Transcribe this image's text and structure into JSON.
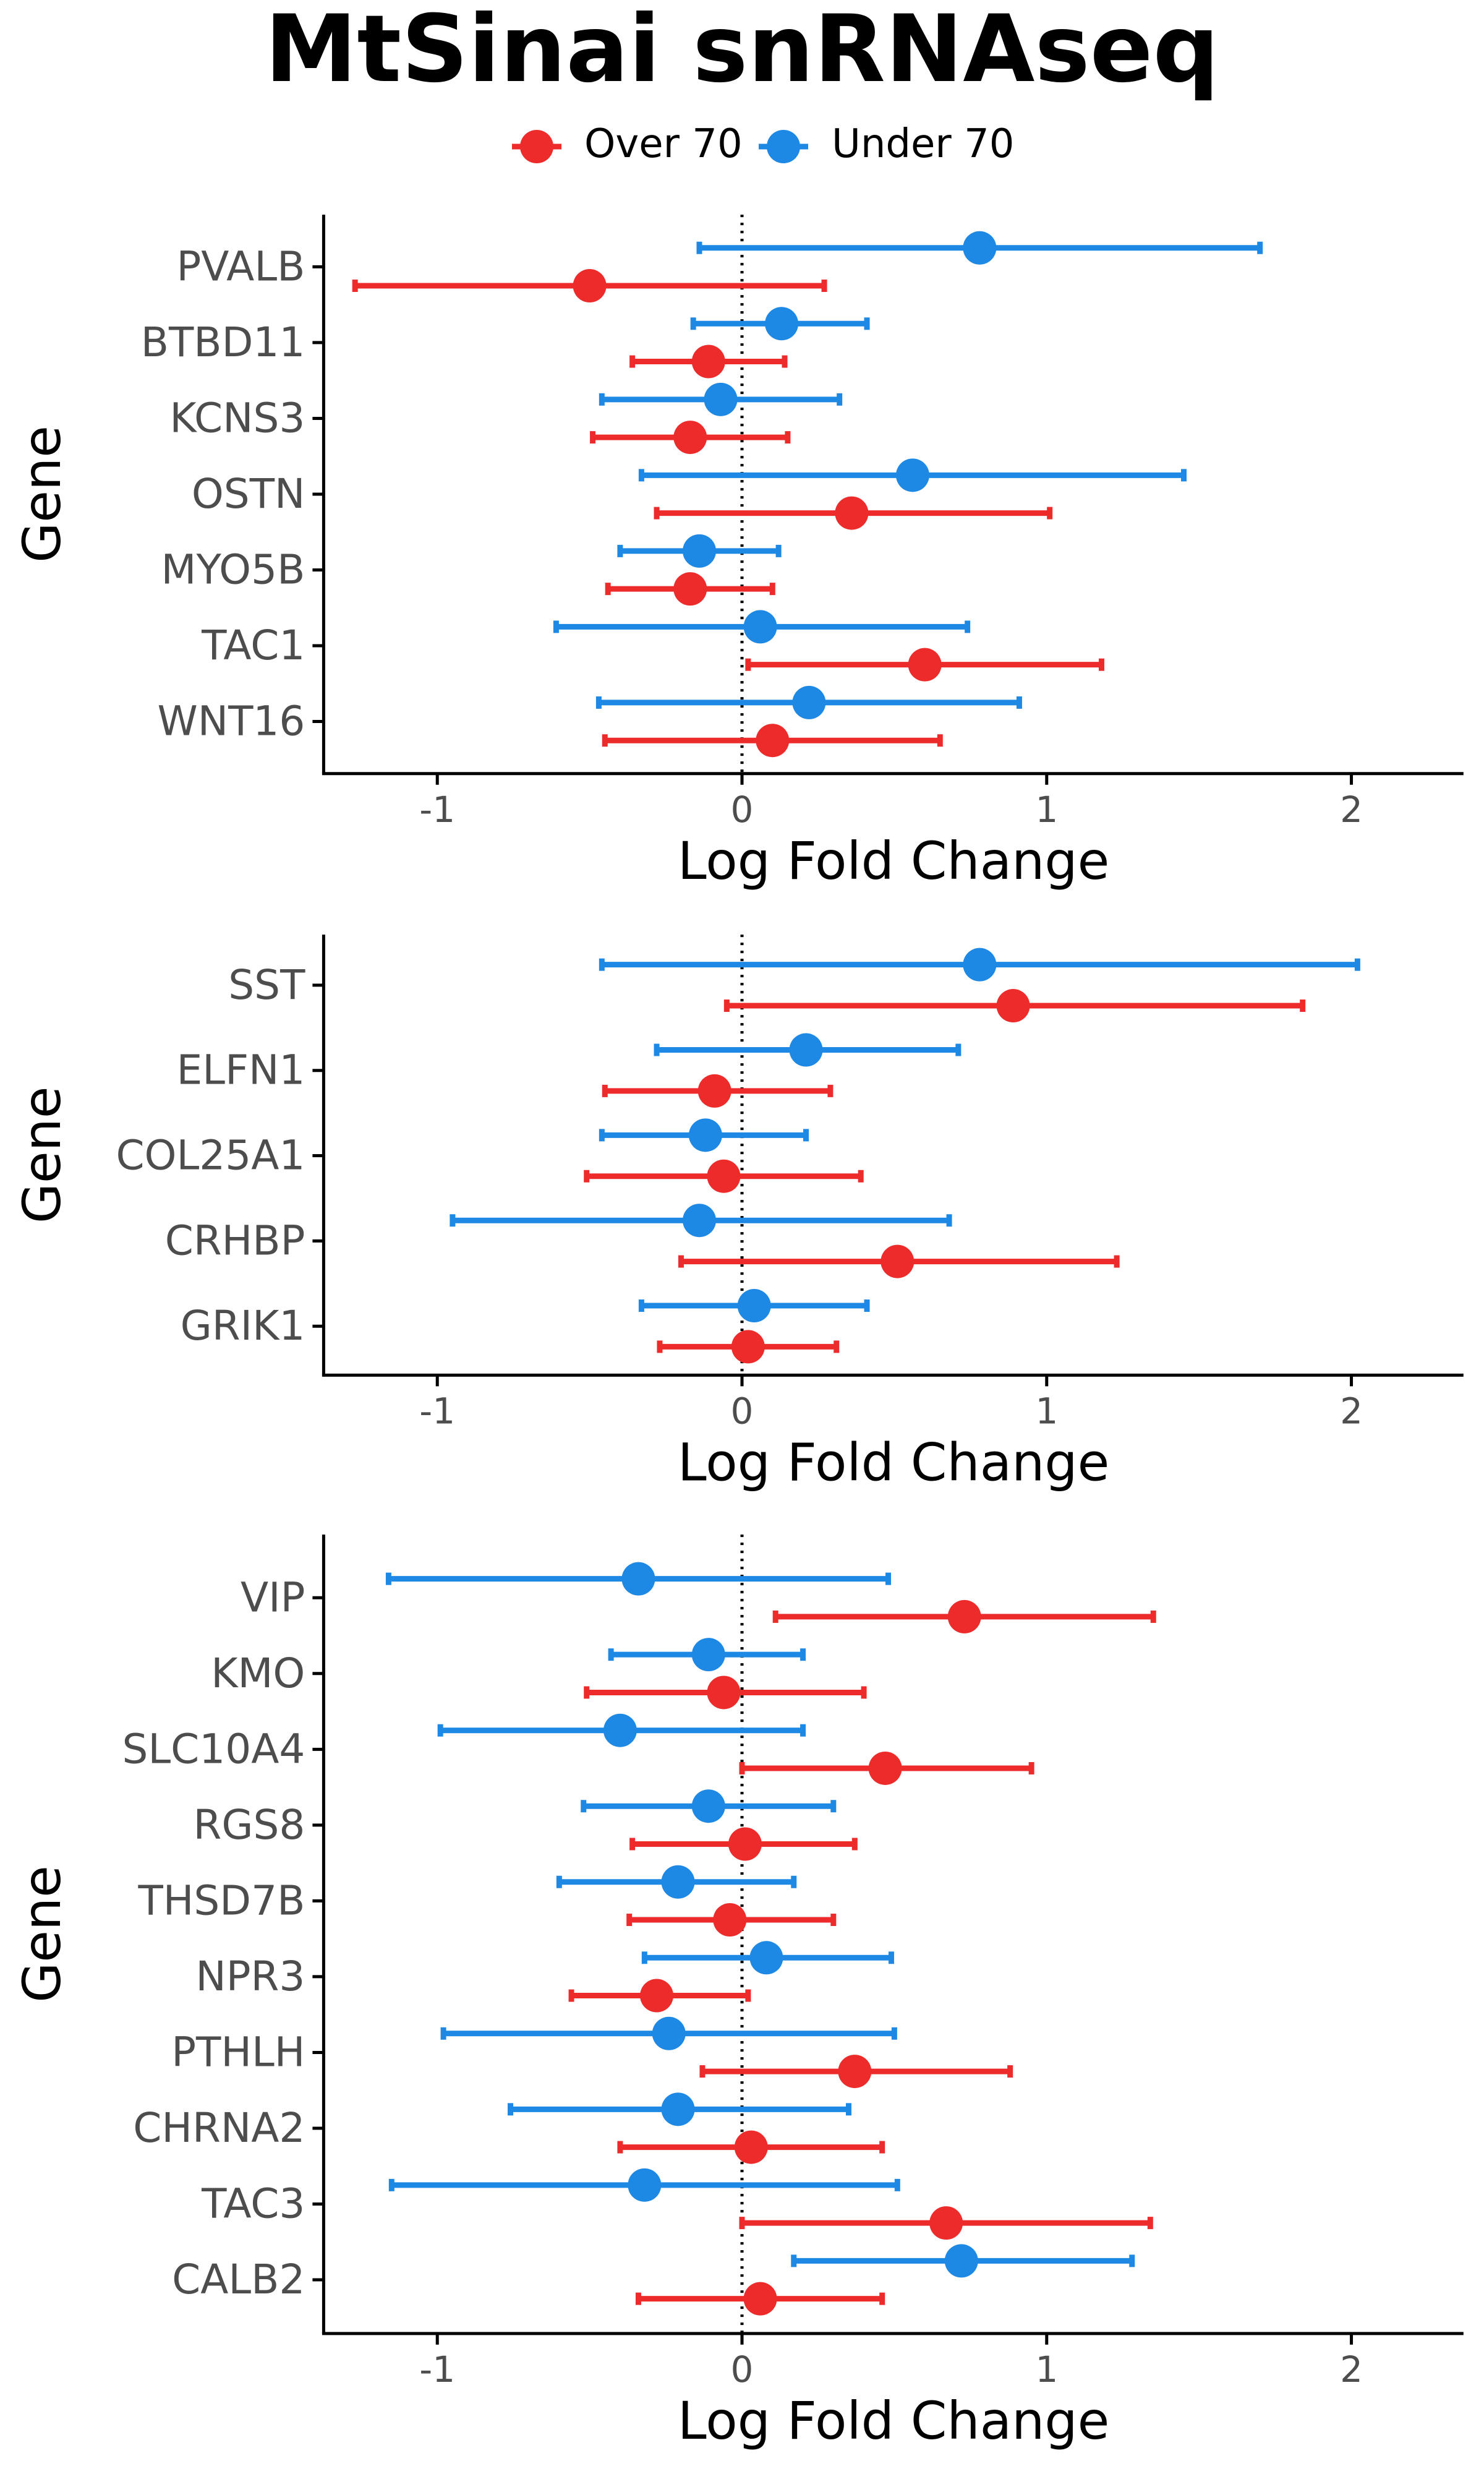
{
  "title": "MtSinai snRNAseq",
  "legend": [
    {
      "label": "Over 70",
      "color": "#EE2B2B"
    },
    {
      "label": "Under 70",
      "color": "#1E88E5"
    }
  ],
  "chart_data": [
    {
      "type": "scatter",
      "subtype": "dot-and-error-bar (forest plot)",
      "ylabel": "Gene",
      "xlabel": "Log Fold Change",
      "xlim": [
        -1.35,
        2.35
      ],
      "xticks": [
        -1,
        0,
        1,
        2
      ],
      "xtick_labels": [
        "-1",
        "0",
        "1",
        "2"
      ],
      "reference_line": {
        "x": 0,
        "style": "dotted"
      },
      "categories": [
        "PVALB",
        "BTBD11",
        "KCNS3",
        "OSTN",
        "MYO5B",
        "TAC1",
        "WNT16"
      ],
      "series": [
        {
          "name": "Under 70",
          "color": "#1E88E5",
          "values": [
            0.78,
            0.13,
            -0.07,
            0.56,
            -0.14,
            0.06,
            0.22
          ],
          "lower": [
            -0.14,
            -0.16,
            -0.46,
            -0.33,
            -0.4,
            -0.61,
            -0.47
          ],
          "upper": [
            1.7,
            0.41,
            0.32,
            1.45,
            0.12,
            0.74,
            0.91
          ]
        },
        {
          "name": "Over 70",
          "color": "#EE2B2B",
          "values": [
            -0.5,
            -0.11,
            -0.17,
            0.36,
            -0.17,
            0.6,
            0.1
          ],
          "lower": [
            -1.27,
            -0.36,
            -0.49,
            -0.28,
            -0.44,
            0.02,
            -0.45
          ],
          "upper": [
            0.27,
            0.14,
            0.15,
            1.01,
            0.1,
            1.18,
            0.65
          ]
        }
      ]
    },
    {
      "type": "scatter",
      "subtype": "dot-and-error-bar (forest plot)",
      "ylabel": "Gene",
      "xlabel": "Log Fold Change",
      "xlim": [
        -1.35,
        2.35
      ],
      "xticks": [
        -1,
        0,
        1,
        2
      ],
      "xtick_labels": [
        "-1",
        "0",
        "1",
        "2"
      ],
      "reference_line": {
        "x": 0,
        "style": "dotted"
      },
      "categories": [
        "SST",
        "ELFN1",
        "COL25A1",
        "CRHBP",
        "GRIK1"
      ],
      "series": [
        {
          "name": "Under 70",
          "color": "#1E88E5",
          "values": [
            0.78,
            0.21,
            -0.12,
            -0.14,
            0.04
          ],
          "lower": [
            -0.46,
            -0.28,
            -0.46,
            -0.95,
            -0.33
          ],
          "upper": [
            2.02,
            0.71,
            0.21,
            0.68,
            0.41
          ]
        },
        {
          "name": "Over 70",
          "color": "#EE2B2B",
          "values": [
            0.89,
            -0.09,
            -0.06,
            0.51,
            0.02
          ],
          "lower": [
            -0.05,
            -0.45,
            -0.51,
            -0.2,
            -0.27
          ],
          "upper": [
            1.84,
            0.29,
            0.39,
            1.23,
            0.31
          ]
        }
      ]
    },
    {
      "type": "scatter",
      "subtype": "dot-and-error-bar (forest plot)",
      "ylabel": "Gene",
      "xlabel": "Log Fold Change",
      "xlim": [
        -1.35,
        2.35
      ],
      "xticks": [
        -1,
        0,
        1,
        2
      ],
      "xtick_labels": [
        "-1",
        "0",
        "1",
        "2"
      ],
      "reference_line": {
        "x": 0,
        "style": "dotted"
      },
      "categories": [
        "VIP",
        "KMO",
        "SLC10A4",
        "RGS8",
        "THSD7B",
        "NPR3",
        "PTHLH",
        "CHRNA2",
        "TAC3",
        "CALB2"
      ],
      "series": [
        {
          "name": "Under 70",
          "color": "#1E88E5",
          "values": [
            -0.34,
            -0.11,
            -0.4,
            -0.11,
            -0.21,
            0.08,
            -0.24,
            -0.21,
            -0.32,
            0.72
          ],
          "lower": [
            -1.16,
            -0.43,
            -0.99,
            -0.52,
            -0.6,
            -0.32,
            -0.98,
            -0.76,
            -1.15,
            0.17
          ],
          "upper": [
            0.48,
            0.2,
            0.2,
            0.3,
            0.17,
            0.49,
            0.5,
            0.35,
            0.51,
            1.28
          ]
        },
        {
          "name": "Over 70",
          "color": "#EE2B2B",
          "values": [
            0.73,
            -0.06,
            0.47,
            0.01,
            -0.04,
            -0.28,
            0.37,
            0.03,
            0.67,
            0.06
          ],
          "lower": [
            0.11,
            -0.51,
            0.0,
            -0.36,
            -0.37,
            -0.56,
            -0.13,
            -0.4,
            0.0,
            -0.34
          ],
          "upper": [
            1.35,
            0.4,
            0.95,
            0.37,
            0.3,
            0.02,
            0.88,
            0.46,
            1.34,
            0.46
          ]
        }
      ]
    }
  ]
}
